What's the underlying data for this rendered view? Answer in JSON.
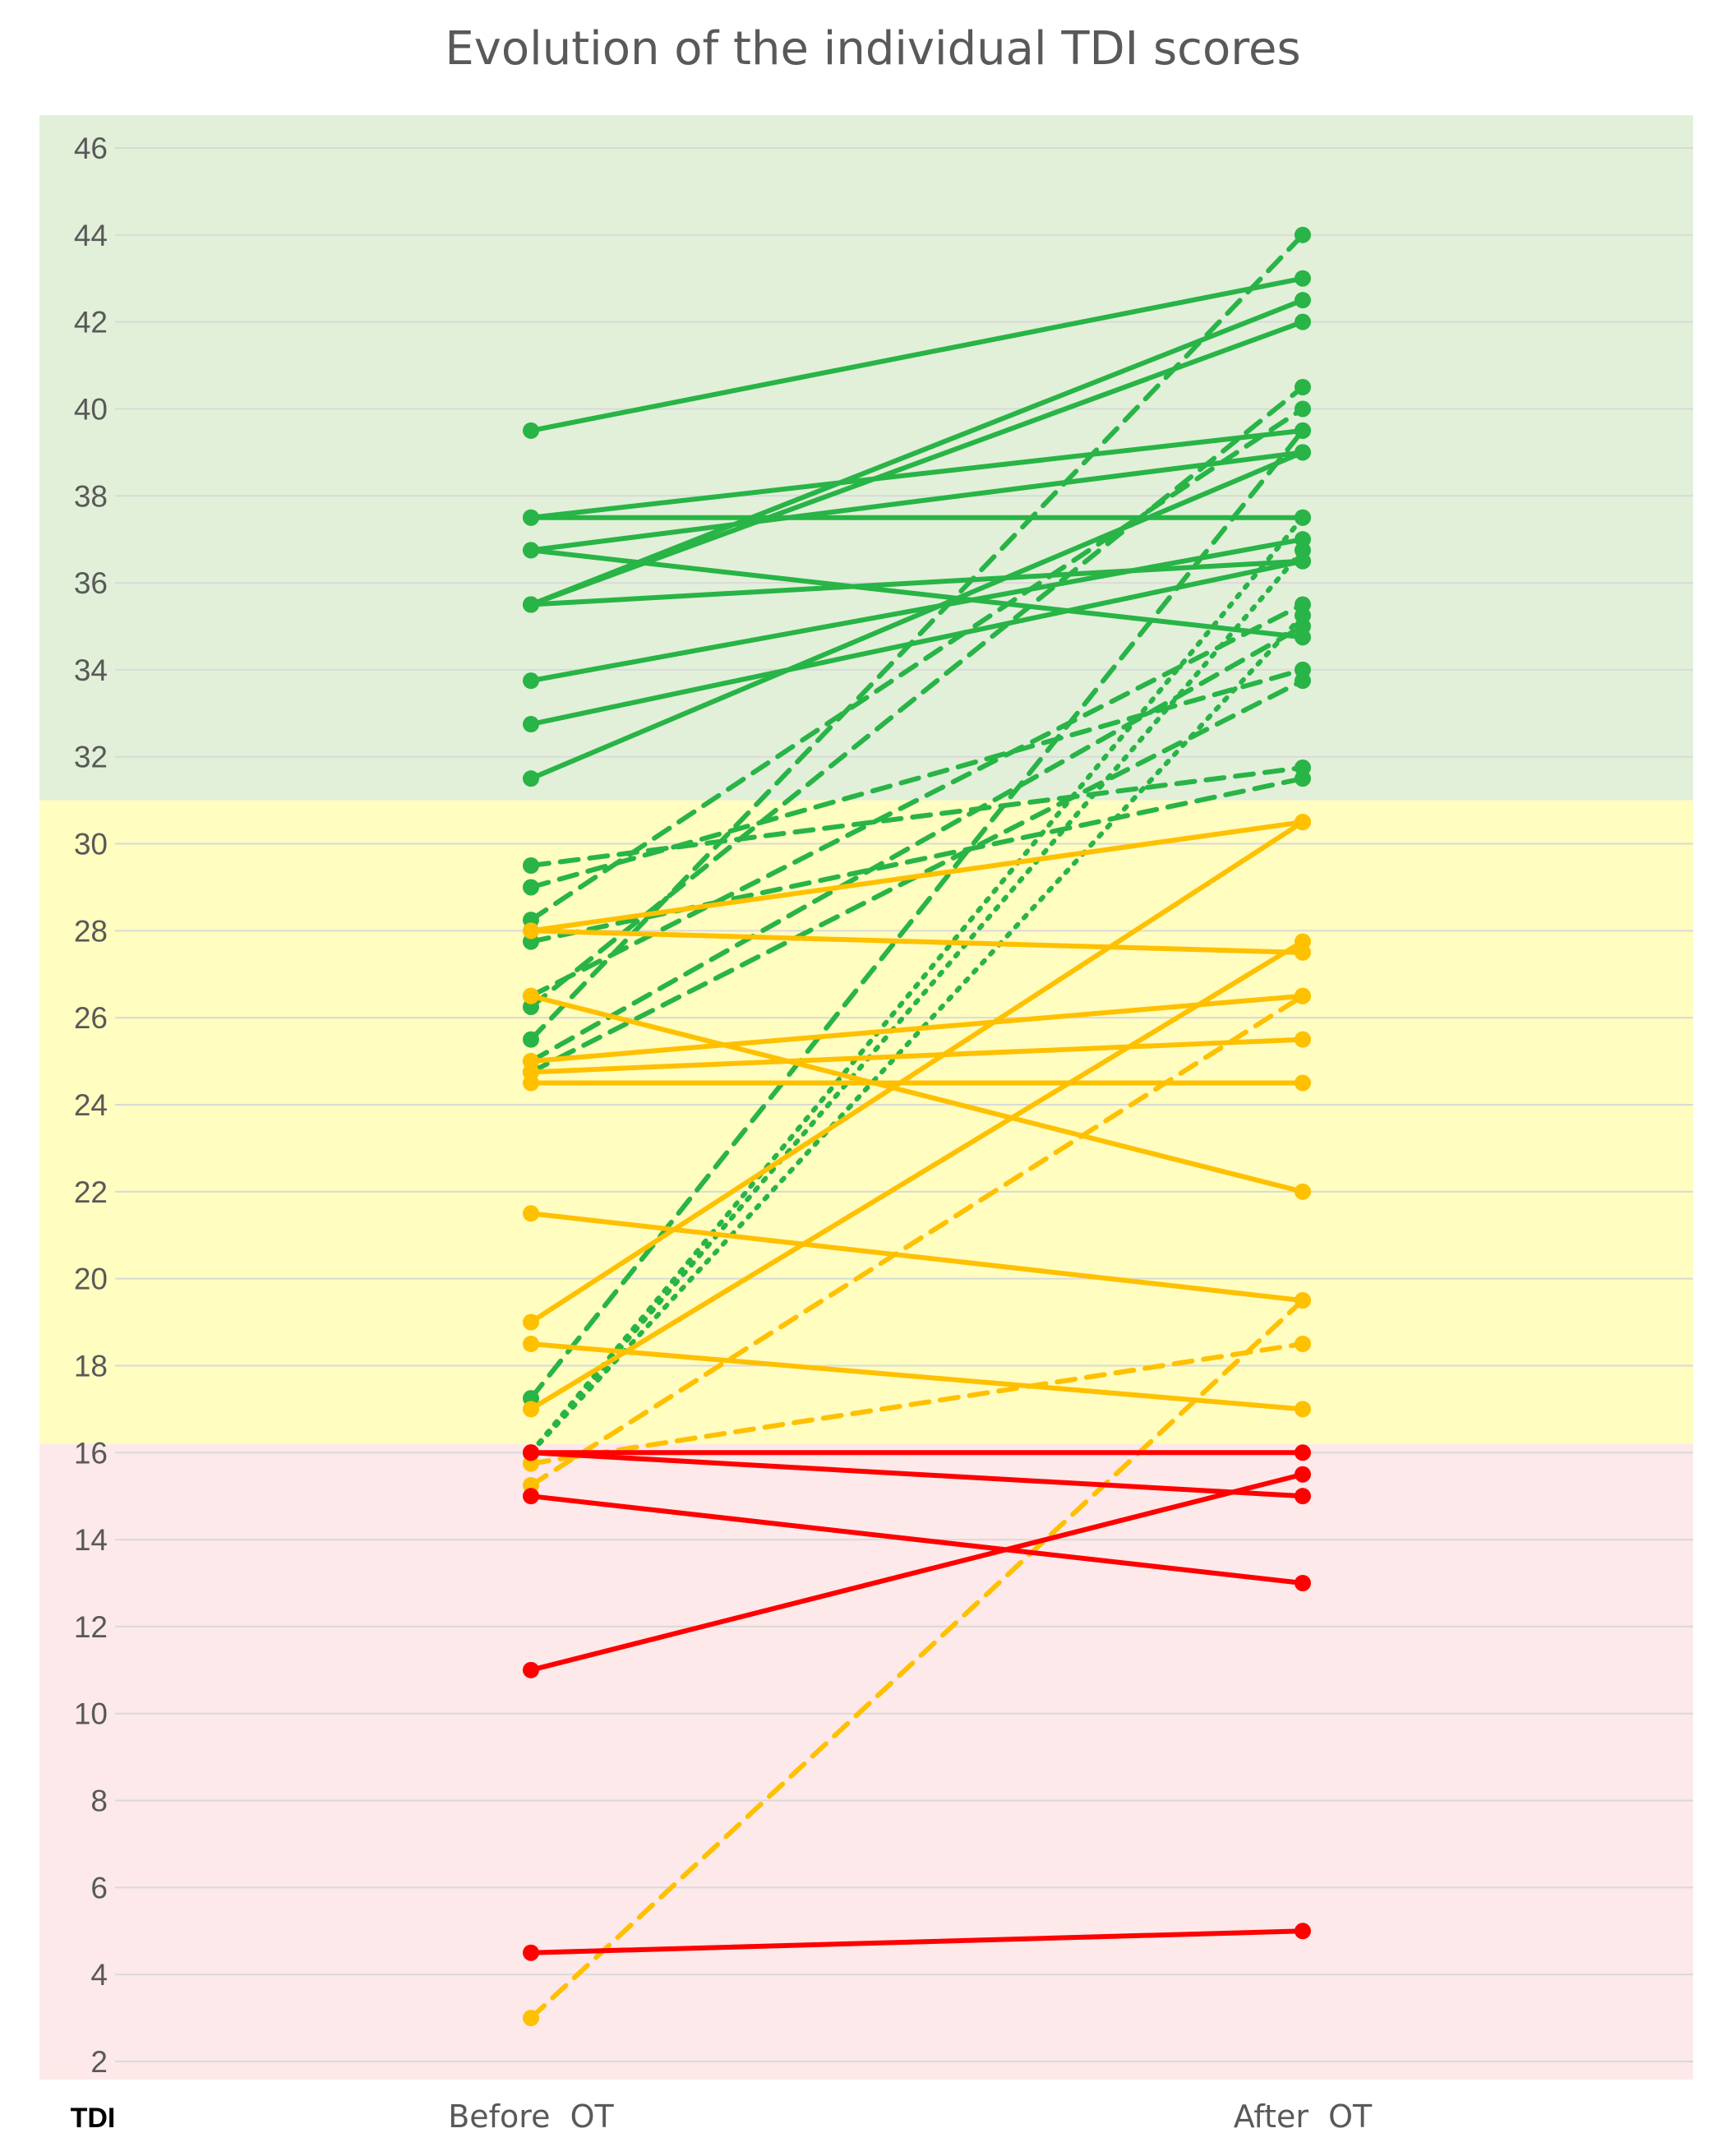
{
  "chart_data": {
    "type": "line",
    "title": "Evolution of the individual TDI scores",
    "categories": [
      "Before  OT",
      "After  OT"
    ],
    "ylabel": "TDI",
    "ylim": [
      2,
      46
    ],
    "ytick_step": 2,
    "grid": true,
    "zones": [
      {
        "from": 31,
        "to": 47,
        "color": "#e2f0d9"
      },
      {
        "from": 16.2,
        "to": 31,
        "color": "#fffdbf"
      },
      {
        "from": 2,
        "to": 16.2,
        "color": "#fde9e9"
      }
    ],
    "colors": {
      "normosmia": "#28b446",
      "hyposmia": "#ffc000",
      "anosmia": "#ff0000",
      "grid": "#d9d9d9"
    },
    "series": [
      {
        "values": [
          39.5,
          43
        ],
        "color": "#28b446",
        "dash": "solid"
      },
      {
        "values": [
          37.5,
          39.5
        ],
        "color": "#28b446",
        "dash": "solid"
      },
      {
        "values": [
          37.5,
          37.5
        ],
        "color": "#28b446",
        "dash": "solid"
      },
      {
        "values": [
          36.75,
          39
        ],
        "color": "#28b446",
        "dash": "solid"
      },
      {
        "values": [
          36.75,
          34.75
        ],
        "color": "#28b446",
        "dash": "solid"
      },
      {
        "values": [
          35.5,
          42.5
        ],
        "color": "#28b446",
        "dash": "solid"
      },
      {
        "values": [
          35.5,
          42
        ],
        "color": "#28b446",
        "dash": "solid"
      },
      {
        "values": [
          35.5,
          36.5
        ],
        "color": "#28b446",
        "dash": "solid"
      },
      {
        "values": [
          33.75,
          37
        ],
        "color": "#28b446",
        "dash": "solid"
      },
      {
        "values": [
          32.75,
          36.5
        ],
        "color": "#28b446",
        "dash": "solid"
      },
      {
        "values": [
          31.5,
          39
        ],
        "color": "#28b446",
        "dash": "solid"
      },
      {
        "values": [
          29.5,
          31.75
        ],
        "color": "#28b446",
        "dash": "dashed"
      },
      {
        "values": [
          29,
          34
        ],
        "color": "#28b446",
        "dash": "dashed"
      },
      {
        "values": [
          28.25,
          40
        ],
        "color": "#28b446",
        "dash": "dashed"
      },
      {
        "values": [
          27.75,
          31.5
        ],
        "color": "#28b446",
        "dash": "dashed"
      },
      {
        "values": [
          26.5,
          35.5
        ],
        "color": "#28b446",
        "dash": "dashed"
      },
      {
        "values": [
          26.25,
          40.5
        ],
        "color": "#28b446",
        "dash": "dashed"
      },
      {
        "values": [
          25.5,
          44
        ],
        "color": "#28b446",
        "dash": "dashed"
      },
      {
        "values": [
          25,
          35
        ],
        "color": "#28b446",
        "dash": "dashed"
      },
      {
        "values": [
          24.75,
          33.75
        ],
        "color": "#28b446",
        "dash": "dashed"
      },
      {
        "values": [
          17.25,
          39.5
        ],
        "color": "#28b446",
        "dash": "dashed"
      },
      {
        "values": [
          16,
          37.5
        ],
        "color": "#28b446",
        "dash": "dotted"
      },
      {
        "values": [
          16,
          36.75
        ],
        "color": "#28b446",
        "dash": "dotted"
      },
      {
        "values": [
          16,
          35.25
        ],
        "color": "#28b446",
        "dash": "dotted"
      },
      {
        "values": [
          28,
          30.5
        ],
        "color": "#ffc000",
        "dash": "solid"
      },
      {
        "values": [
          28,
          27.5
        ],
        "color": "#ffc000",
        "dash": "solid"
      },
      {
        "values": [
          26.5,
          22
        ],
        "color": "#ffc000",
        "dash": "solid"
      },
      {
        "values": [
          25,
          26.5
        ],
        "color": "#ffc000",
        "dash": "solid"
      },
      {
        "values": [
          24.75,
          25.5
        ],
        "color": "#ffc000",
        "dash": "solid"
      },
      {
        "values": [
          24.5,
          24.5
        ],
        "color": "#ffc000",
        "dash": "solid"
      },
      {
        "values": [
          21.5,
          19.5
        ],
        "color": "#ffc000",
        "dash": "solid"
      },
      {
        "values": [
          19,
          30.5
        ],
        "color": "#ffc000",
        "dash": "solid"
      },
      {
        "values": [
          18.5,
          17
        ],
        "color": "#ffc000",
        "dash": "solid"
      },
      {
        "values": [
          17,
          27.75
        ],
        "color": "#ffc000",
        "dash": "solid"
      },
      {
        "values": [
          15.75,
          18.5
        ],
        "color": "#ffc000",
        "dash": "dashed"
      },
      {
        "values": [
          15.25,
          26.5
        ],
        "color": "#ffc000",
        "dash": "dashed"
      },
      {
        "values": [
          3,
          19.5
        ],
        "color": "#ffc000",
        "dash": "dashed"
      },
      {
        "values": [
          16,
          16
        ],
        "color": "#ff0000",
        "dash": "solid"
      },
      {
        "values": [
          16,
          15
        ],
        "color": "#ff0000",
        "dash": "solid"
      },
      {
        "values": [
          15,
          13
        ],
        "color": "#ff0000",
        "dash": "solid"
      },
      {
        "values": [
          11,
          15.5
        ],
        "color": "#ff0000",
        "dash": "solid"
      },
      {
        "values": [
          4.5,
          5
        ],
        "color": "#ff0000",
        "dash": "solid"
      }
    ]
  }
}
